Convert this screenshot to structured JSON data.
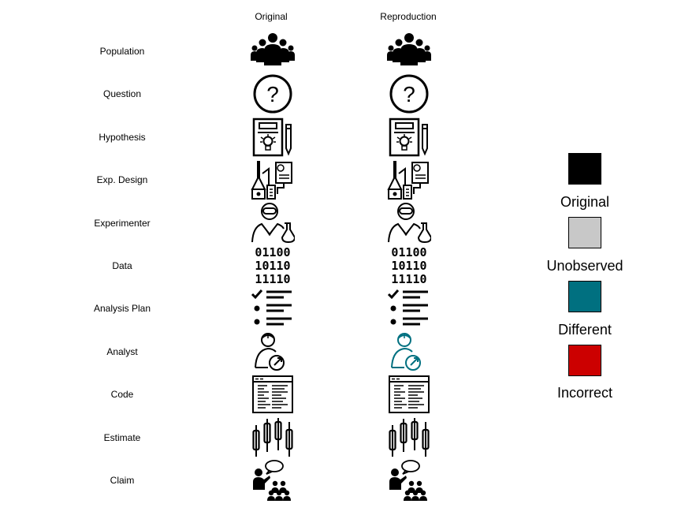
{
  "columns": [
    "Original",
    "Reproduction"
  ],
  "rows": [
    {
      "label": "Population",
      "icon": "population-icon",
      "status": [
        "original",
        "original"
      ]
    },
    {
      "label": "Question",
      "icon": "question-icon",
      "status": [
        "original",
        "original"
      ]
    },
    {
      "label": "Hypothesis",
      "icon": "hypothesis-icon",
      "status": [
        "original",
        "original"
      ]
    },
    {
      "label": "Exp. Design",
      "icon": "experiment-design-icon",
      "status": [
        "original",
        "original"
      ]
    },
    {
      "label": "Experimenter",
      "icon": "experimenter-icon",
      "status": [
        "original",
        "original"
      ]
    },
    {
      "label": "Data",
      "icon": "binary-data-icon",
      "status": [
        "original",
        "original"
      ]
    },
    {
      "label": "Analysis Plan",
      "icon": "checklist-icon",
      "status": [
        "original",
        "original"
      ]
    },
    {
      "label": "Analyst",
      "icon": "analyst-icon",
      "status": [
        "original",
        "different"
      ]
    },
    {
      "label": "Code",
      "icon": "code-window-icon",
      "status": [
        "original",
        "original"
      ]
    },
    {
      "label": "Estimate",
      "icon": "candlestick-chart-icon",
      "status": [
        "original",
        "original"
      ]
    },
    {
      "label": "Claim",
      "icon": "presenter-audience-icon",
      "status": [
        "original",
        "original"
      ]
    }
  ],
  "binary_lines": [
    "01100",
    "10110",
    "11110"
  ],
  "question_mark": "?",
  "legend": [
    {
      "label": "Original",
      "color": "#000000"
    },
    {
      "label": "Unobserved",
      "color": "#c8c8c8"
    },
    {
      "label": "Different",
      "color": "#007080"
    },
    {
      "label": "Incorrect",
      "color": "#cc0000"
    }
  ]
}
